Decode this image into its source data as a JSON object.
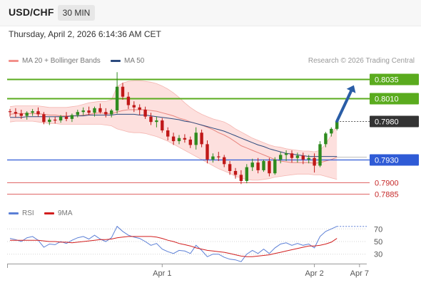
{
  "header": {
    "symbol": "USD/CHF",
    "timeframe": "30 MIN"
  },
  "timestamp": "Thursday, April 2, 2026 6:14:36 AM CET",
  "legend": {
    "bollinger": {
      "label": "MA 20 + Bollinger Bands",
      "color": "#f2908a"
    },
    "ma50": {
      "label": "MA 50",
      "color": "#2c4a7e"
    }
  },
  "credit": "Research © 2026 Trading Central",
  "rsi_legend": {
    "rsi": {
      "label": "RSI",
      "color": "#5b7fd6"
    },
    "ma9": {
      "label": "9MA",
      "color": "#d21e1e"
    }
  },
  "colors": {
    "up_candle": "#2e8b1e",
    "down_candle": "#c01818",
    "band_fill": "#fde0de",
    "resistance": "#5aab1e",
    "pivot": "#2f5bd6",
    "support": "#e06666",
    "last_price": "#333333",
    "arrow": "#2a5da6"
  },
  "chart_data": [
    {
      "type": "candlestick",
      "title": "USD/CHF",
      "ylim": [
        0.7875,
        0.8048
      ],
      "x_tick_labels": [
        {
          "label": "Apr 1",
          "index": 27
        },
        {
          "label": "Apr 2",
          "index": 54
        },
        {
          "label": "Apr 7",
          "index": 62
        }
      ],
      "levels": [
        {
          "label": "0.8035",
          "value": 0.8035,
          "kind": "resistance"
        },
        {
          "label": "0.8010",
          "value": 0.801,
          "kind": "resistance"
        },
        {
          "label": "0.7980",
          "value": 0.798,
          "kind": "last"
        },
        {
          "label": "0.7930",
          "value": 0.793,
          "kind": "pivot"
        },
        {
          "label": "0.7900",
          "value": 0.79,
          "kind": "support"
        },
        {
          "label": "0.7885",
          "value": 0.7885,
          "kind": "support"
        }
      ],
      "forecast": {
        "from_index": 58,
        "from_value": 0.798,
        "to_index": 61,
        "to_value": 0.8027
      },
      "ohlc": [
        [
          0.7993,
          0.7996,
          0.7986,
          0.7992
        ],
        [
          0.7992,
          0.7997,
          0.7985,
          0.799
        ],
        [
          0.799,
          0.7995,
          0.7983,
          0.7987
        ],
        [
          0.7987,
          0.7993,
          0.7982,
          0.7991
        ],
        [
          0.7991,
          0.7996,
          0.7987,
          0.7993
        ],
        [
          0.7993,
          0.7998,
          0.7986,
          0.7989
        ],
        [
          0.7989,
          0.7992,
          0.7976,
          0.7979
        ],
        [
          0.7979,
          0.7985,
          0.7975,
          0.7982
        ],
        [
          0.7982,
          0.7986,
          0.7977,
          0.7981
        ],
        [
          0.7981,
          0.7988,
          0.7978,
          0.7986
        ],
        [
          0.7986,
          0.7992,
          0.798,
          0.7983
        ],
        [
          0.7983,
          0.799,
          0.7979,
          0.7988
        ],
        [
          0.7988,
          0.7995,
          0.7985,
          0.7992
        ],
        [
          0.7992,
          0.7998,
          0.7988,
          0.7994
        ],
        [
          0.7994,
          0.7999,
          0.7988,
          0.7991
        ],
        [
          0.7991,
          0.7999,
          0.7986,
          0.7997
        ],
        [
          0.7997,
          0.8003,
          0.799,
          0.7992
        ],
        [
          0.7992,
          0.7997,
          0.7985,
          0.7989
        ],
        [
          0.7989,
          0.7996,
          0.7985,
          0.7994
        ],
        [
          0.7994,
          0.8044,
          0.799,
          0.8025
        ],
        [
          0.8025,
          0.803,
          0.8008,
          0.8012
        ],
        [
          0.8012,
          0.8018,
          0.7996,
          0.8001
        ],
        [
          0.8001,
          0.8006,
          0.7992,
          0.7998
        ],
        [
          0.7998,
          0.8002,
          0.7988,
          0.7995
        ],
        [
          0.7995,
          0.7999,
          0.7983,
          0.7986
        ],
        [
          0.7986,
          0.7991,
          0.7975,
          0.7979
        ],
        [
          0.7979,
          0.7986,
          0.7972,
          0.7981
        ],
        [
          0.7981,
          0.7984,
          0.7965,
          0.7968
        ],
        [
          0.7968,
          0.7972,
          0.7955,
          0.796
        ],
        [
          0.796,
          0.7965,
          0.7949,
          0.7954
        ],
        [
          0.7954,
          0.7962,
          0.795,
          0.7958
        ],
        [
          0.7958,
          0.7963,
          0.7952,
          0.7956
        ],
        [
          0.7956,
          0.796,
          0.7945,
          0.7949
        ],
        [
          0.7949,
          0.7972,
          0.7943,
          0.7965
        ],
        [
          0.7965,
          0.7969,
          0.7946,
          0.795
        ],
        [
          0.795,
          0.7955,
          0.7925,
          0.793
        ],
        [
          0.793,
          0.7938,
          0.7926,
          0.7934
        ],
        [
          0.7934,
          0.794,
          0.7928,
          0.7933
        ],
        [
          0.7933,
          0.7936,
          0.792,
          0.7924
        ],
        [
          0.7924,
          0.7928,
          0.791,
          0.7915
        ],
        [
          0.7915,
          0.7919,
          0.7905,
          0.791
        ],
        [
          0.791,
          0.7916,
          0.7898,
          0.7902
        ],
        [
          0.7902,
          0.7924,
          0.7899,
          0.792
        ],
        [
          0.792,
          0.7931,
          0.7915,
          0.7926
        ],
        [
          0.7926,
          0.7932,
          0.7912,
          0.7916
        ],
        [
          0.7916,
          0.793,
          0.7914,
          0.7928
        ],
        [
          0.7928,
          0.7932,
          0.7908,
          0.7912
        ],
        [
          0.7912,
          0.7933,
          0.791,
          0.793
        ],
        [
          0.793,
          0.794,
          0.7925,
          0.7936
        ],
        [
          0.7936,
          0.7942,
          0.7928,
          0.7938
        ],
        [
          0.7938,
          0.7942,
          0.7926,
          0.7932
        ],
        [
          0.7932,
          0.7939,
          0.7926,
          0.7935
        ],
        [
          0.7935,
          0.7939,
          0.7924,
          0.793
        ],
        [
          0.793,
          0.7936,
          0.7925,
          0.7932
        ],
        [
          0.7932,
          0.7938,
          0.7913,
          0.7922
        ],
        [
          0.7922,
          0.7954,
          0.792,
          0.795
        ],
        [
          0.795,
          0.7966,
          0.7946,
          0.7964
        ],
        [
          0.7964,
          0.7972,
          0.796,
          0.797
        ],
        [
          0.797,
          0.7982,
          0.7968,
          0.798
        ]
      ],
      "ma20": [
        0.7989,
        0.799,
        0.799,
        0.799,
        0.799,
        0.799,
        0.7989,
        0.7988,
        0.7988,
        0.7987,
        0.7987,
        0.7987,
        0.7987,
        0.7988,
        0.7989,
        0.799,
        0.7991,
        0.799,
        0.799,
        0.7992,
        0.7994,
        0.7995,
        0.7995,
        0.7995,
        0.7995,
        0.7994,
        0.7993,
        0.7991,
        0.7989,
        0.7987,
        0.7984,
        0.7982,
        0.7979,
        0.7977,
        0.7975,
        0.7972,
        0.7969,
        0.7965,
        0.7962,
        0.7958,
        0.7953,
        0.7948,
        0.7945,
        0.7942,
        0.7939,
        0.7936,
        0.7933,
        0.793,
        0.7928,
        0.7927,
        0.7926,
        0.7926,
        0.7926,
        0.7926,
        0.7925,
        0.7926,
        0.7928,
        0.793,
        0.7933
      ],
      "bb_upper": [
        0.7999,
        0.8,
        0.8,
        0.8,
        0.8,
        0.8,
        0.7999,
        0.7998,
        0.7998,
        0.7998,
        0.7998,
        0.7999,
        0.8,
        0.8002,
        0.8004,
        0.8005,
        0.8006,
        0.8006,
        0.8008,
        0.8025,
        0.803,
        0.8032,
        0.8033,
        0.8033,
        0.8032,
        0.8031,
        0.8029,
        0.8026,
        0.8022,
        0.8017,
        0.8011,
        0.8004,
        0.7998,
        0.7993,
        0.7989,
        0.7986,
        0.7983,
        0.7981,
        0.7979,
        0.7975,
        0.797,
        0.7966,
        0.7962,
        0.7958,
        0.7955,
        0.7952,
        0.7949,
        0.7947,
        0.7946,
        0.7944,
        0.7943,
        0.7942,
        0.7941,
        0.7941,
        0.794,
        0.7942,
        0.795,
        0.7962,
        0.7975
      ],
      "bb_lower": [
        0.7979,
        0.798,
        0.798,
        0.798,
        0.798,
        0.7979,
        0.7978,
        0.7977,
        0.7977,
        0.7976,
        0.7976,
        0.7976,
        0.7976,
        0.7976,
        0.7976,
        0.7976,
        0.7976,
        0.7975,
        0.7974,
        0.797,
        0.7968,
        0.7966,
        0.7965,
        0.7965,
        0.7964,
        0.7962,
        0.796,
        0.7957,
        0.7954,
        0.795,
        0.7946,
        0.7942,
        0.7938,
        0.7934,
        0.793,
        0.7926,
        0.7922,
        0.7918,
        0.7915,
        0.7912,
        0.7908,
        0.7906,
        0.7904,
        0.7903,
        0.7903,
        0.7904,
        0.7905,
        0.7907,
        0.7908,
        0.7909,
        0.791,
        0.7911,
        0.7911,
        0.7911,
        0.791,
        0.791,
        0.7908,
        0.7906,
        0.7904
      ],
      "ma50": [
        0.7985,
        0.7985,
        0.7985,
        0.7986,
        0.7986,
        0.7986,
        0.7986,
        0.7986,
        0.7986,
        0.7986,
        0.7986,
        0.7987,
        0.7987,
        0.7987,
        0.7988,
        0.7988,
        0.7988,
        0.7988,
        0.7988,
        0.7989,
        0.7989,
        0.7989,
        0.7989,
        0.7988,
        0.7988,
        0.7987,
        0.7986,
        0.7985,
        0.7984,
        0.7983,
        0.7982,
        0.798,
        0.7979,
        0.7977,
        0.7975,
        0.7973,
        0.7971,
        0.7969,
        0.7967,
        0.7964,
        0.7961,
        0.7958,
        0.7955,
        0.7952,
        0.7949,
        0.7947,
        0.7944,
        0.7942,
        0.794,
        0.7938,
        0.7937,
        0.7936,
        0.7935,
        0.7934,
        0.7934,
        0.7934,
        0.7934,
        0.7934,
        0.7934
      ]
    },
    {
      "type": "line",
      "title": "RSI",
      "ylim": [
        15,
        85
      ],
      "y_ticks": [
        {
          "label": "70",
          "value": 70
        },
        {
          "label": "50",
          "value": 50
        },
        {
          "label": "30",
          "value": 30
        }
      ],
      "series": [
        {
          "name": "RSI",
          "values": [
            55,
            53,
            50,
            56,
            58,
            52,
            41,
            46,
            45,
            50,
            47,
            52,
            56,
            58,
            54,
            60,
            54,
            50,
            56,
            74,
            66,
            60,
            57,
            55,
            50,
            44,
            47,
            38,
            34,
            31,
            36,
            35,
            31,
            44,
            36,
            26,
            30,
            30,
            25,
            22,
            21,
            18,
            30,
            36,
            31,
            38,
            31,
            40,
            46,
            48,
            44,
            47,
            44,
            46,
            40,
            58,
            66,
            70,
            74
          ]
        },
        {
          "name": "9MA",
          "values": [
            52,
            52,
            52,
            52,
            52,
            52,
            51,
            50,
            50,
            49,
            49,
            48,
            49,
            50,
            51,
            52,
            53,
            53,
            54,
            56,
            57,
            58,
            58,
            58,
            58,
            58,
            57,
            55,
            52,
            50,
            47,
            45,
            43,
            40,
            38,
            36,
            35,
            34,
            33,
            31,
            29,
            27,
            26,
            26,
            27,
            28,
            29,
            31,
            33,
            35,
            37,
            39,
            41,
            43,
            43,
            44,
            46,
            49,
            55
          ]
        }
      ]
    }
  ]
}
